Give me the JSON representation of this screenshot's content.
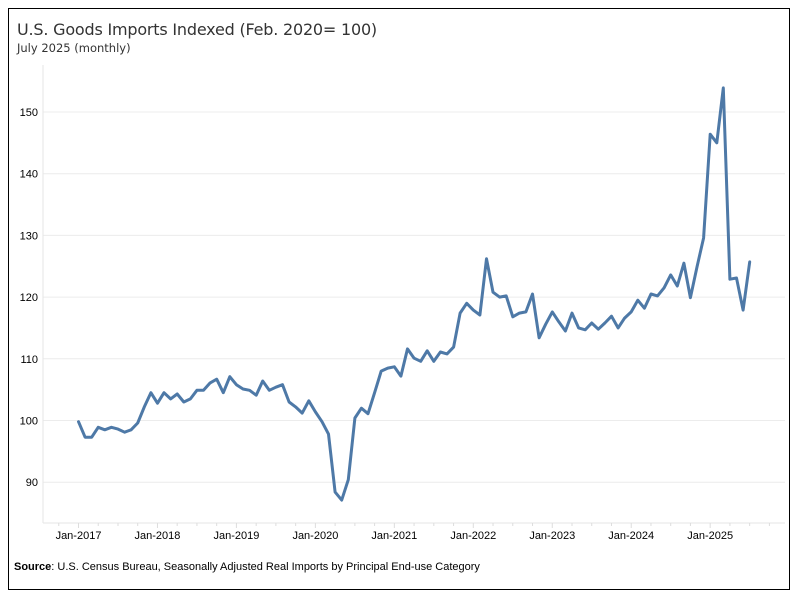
{
  "chart_data": {
    "type": "line",
    "title": "U.S. Goods Imports Indexed (Feb. 2020= 100)",
    "subtitle": "July 2025 (monthly)",
    "source_label": "Source",
    "source_text": ": U.S. Census Bureau, Seasonally Adjusted Real Imports by Principal End-use Category",
    "x_start": "Jan-2017",
    "x_end": "Jul-2025",
    "x_frequency": "monthly",
    "x_tick_labels": [
      "Jan-2017",
      "Jan-2018",
      "Jan-2019",
      "Jan-2020",
      "Jan-2021",
      "Jan-2022",
      "Jan-2023",
      "Jan-2024",
      "Jan-2025"
    ],
    "y_tick_labels": [
      "90",
      "100",
      "110",
      "120",
      "130",
      "140",
      "150"
    ],
    "y_ticks": [
      90,
      100,
      110,
      120,
      130,
      140,
      150
    ],
    "ylim": [
      84,
      157
    ],
    "grid": "horizontal",
    "line_color": "#4e79a7",
    "values": [
      99.8,
      97.3,
      97.3,
      98.9,
      98.5,
      98.9,
      98.6,
      98.1,
      98.5,
      99.6,
      102.2,
      104.5,
      102.8,
      104.5,
      103.5,
      104.3,
      103.0,
      103.5,
      104.9,
      104.9,
      106.1,
      106.7,
      104.5,
      107.1,
      105.8,
      105.1,
      104.9,
      104.1,
      106.4,
      104.9,
      105.4,
      105.8,
      103.0,
      102.2,
      101.2,
      103.2,
      101.4,
      99.8,
      97.8,
      88.4,
      87.1,
      90.4,
      100.4,
      102.0,
      101.1,
      104.5,
      108.0,
      108.5,
      108.7,
      107.2,
      111.6,
      110.1,
      109.6,
      111.3,
      109.6,
      111.1,
      110.8,
      111.9,
      117.4,
      119.0,
      117.9,
      117.1,
      126.2,
      120.8,
      120.0,
      120.2,
      116.8,
      117.4,
      117.6,
      120.5,
      113.4,
      115.6,
      117.6,
      116.0,
      114.5,
      117.4,
      115.0,
      114.7,
      115.8,
      114.8,
      115.8,
      116.9,
      115.0,
      116.6,
      117.6,
      119.5,
      118.2,
      120.5,
      120.2,
      121.5,
      123.6,
      121.8,
      125.5,
      119.9,
      124.9,
      129.6,
      146.4,
      145.0,
      153.9,
      122.9,
      123.1,
      117.9,
      125.7
    ]
  }
}
